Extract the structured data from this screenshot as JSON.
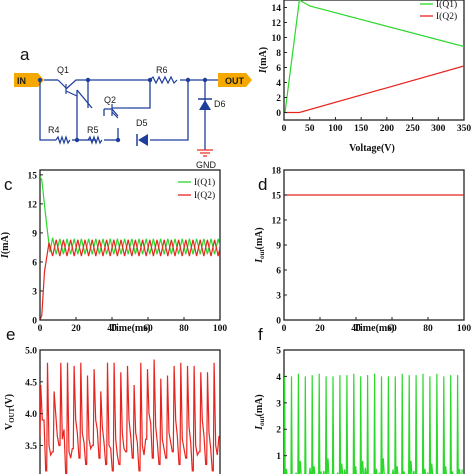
{
  "panel_letters": [
    "a",
    "c",
    "d",
    "e",
    "f"
  ],
  "circuit": {
    "in_label": "IN",
    "out_label": "OUT",
    "components": [
      "Q1",
      "Q2",
      "R6",
      "R4",
      "R5",
      "D5",
      "D6"
    ],
    "gnd_label": "GND",
    "colors": {
      "wire": "#1f3e9c",
      "port": "#f5a800",
      "node": "#1f3e9c"
    }
  },
  "chart_data": [
    {
      "id": "b",
      "type": "line",
      "xlabel": "Voltage(V)",
      "ylabel_main": "I",
      "ylabel_unit": "(mA)",
      "xlim": [
        0,
        350
      ],
      "ylim": [
        -1,
        15
      ],
      "xticks": [
        0,
        50,
        100,
        150,
        200,
        250,
        300,
        350
      ],
      "yticks": [
        0,
        2,
        4,
        6,
        8,
        10,
        12,
        14
      ],
      "legend": [
        "I(Q1)",
        "I(Q2)"
      ],
      "series": [
        {
          "name": "I(Q1)",
          "color": "#2bd82b",
          "x": [
            0,
            2,
            30,
            50,
            350
          ],
          "y": [
            0,
            0,
            15,
            14.2,
            8.8
          ]
        },
        {
          "name": "I(Q2)",
          "color": "#e8241f",
          "x": [
            0,
            30,
            350
          ],
          "y": [
            0,
            0,
            6.2
          ]
        }
      ]
    },
    {
      "id": "c",
      "type": "line",
      "xlabel": "Time(ms)",
      "ylabel_main": "I",
      "ylabel_unit": "(mA)",
      "xlim": [
        0,
        100
      ],
      "ylim": [
        0,
        15.5
      ],
      "xticks": [
        0,
        20,
        40,
        60,
        80,
        100
      ],
      "yticks": [
        0,
        3,
        6,
        9,
        12,
        15
      ],
      "legend": [
        "I(Q1)",
        "I(Q2)"
      ],
      "series": [
        {
          "name": "I(Q1)",
          "color": "#2bd82b",
          "x": [
            0,
            1,
            3,
            5.5,
            7,
            9,
            11,
            13,
            15,
            17,
            19,
            21,
            23,
            25,
            27,
            29,
            31,
            33,
            35,
            37,
            39,
            41,
            43,
            45,
            47,
            49,
            51,
            53,
            55,
            57,
            59,
            61,
            63,
            65,
            67,
            69,
            71,
            73,
            75,
            77,
            79,
            81,
            83,
            85,
            87,
            89,
            91,
            93,
            95,
            97,
            99,
            100
          ],
          "y": [
            14.8,
            14.5,
            11,
            7,
            8.5,
            6.8,
            8.4,
            6.8,
            8.4,
            6.8,
            8.4,
            6.8,
            8.4,
            6.8,
            8.4,
            6.8,
            8.4,
            6.8,
            8.4,
            6.8,
            8.4,
            6.8,
            8.4,
            6.8,
            8.4,
            6.8,
            8.4,
            6.8,
            8.4,
            6.8,
            8.4,
            6.8,
            8.4,
            6.8,
            8.4,
            6.8,
            8.4,
            6.8,
            8.4,
            6.8,
            8.4,
            6.8,
            8.4,
            6.8,
            8.4,
            6.8,
            8.4,
            6.8,
            8.4,
            6.8,
            8.4,
            7.6
          ]
        },
        {
          "name": "I(Q2)",
          "color": "#e8241f",
          "x": [
            0,
            1,
            2.5,
            5,
            7,
            9,
            11,
            13,
            15,
            17,
            19,
            21,
            23,
            25,
            27,
            29,
            31,
            33,
            35,
            37,
            39,
            41,
            43,
            45,
            47,
            49,
            51,
            53,
            55,
            57,
            59,
            61,
            63,
            65,
            67,
            69,
            71,
            73,
            75,
            77,
            79,
            81,
            83,
            85,
            87,
            89,
            91,
            93,
            95,
            97,
            99,
            100
          ],
          "y": [
            0,
            0.5,
            5,
            8,
            6.6,
            8.3,
            6.6,
            8.3,
            6.6,
            8.3,
            6.6,
            8.3,
            6.6,
            8.3,
            6.6,
            8.3,
            6.6,
            8.3,
            6.6,
            8.3,
            6.6,
            8.3,
            6.6,
            8.3,
            6.6,
            8.3,
            6.6,
            8.3,
            6.6,
            8.3,
            6.6,
            8.3,
            6.6,
            8.3,
            6.6,
            8.3,
            6.6,
            8.3,
            6.6,
            8.3,
            6.6,
            8.3,
            6.6,
            8.3,
            6.6,
            8.3,
            6.6,
            8.3,
            6.6,
            8.3,
            6.6,
            7.5
          ]
        }
      ]
    },
    {
      "id": "d",
      "type": "line",
      "xlabel": "Time(ms)",
      "ylabel_main": "I",
      "ylabel_sub": "out",
      "ylabel_unit": "(mA)",
      "xlim": [
        0,
        100
      ],
      "ylim": [
        0,
        18
      ],
      "xticks": [
        0,
        20,
        40,
        60,
        80,
        100
      ],
      "yticks": [
        0,
        3,
        6,
        9,
        12,
        15,
        18
      ],
      "series": [
        {
          "name": "",
          "color": "#e8241f",
          "x": [
            0,
            100
          ],
          "y": [
            15,
            15
          ]
        }
      ]
    },
    {
      "id": "e",
      "type": "line",
      "ylabel_main": "V",
      "ylabel_sub": "OUT",
      "ylabel_unit": "(V)",
      "xlim": [
        0,
        100
      ],
      "ylim": [
        2.8,
        5.0
      ],
      "yticks": [
        3.0,
        3.5,
        4.0,
        4.5,
        5.0
      ],
      "series": [
        {
          "name": "",
          "color": "#e8241f",
          "peaks": [
            4.45,
            4.8,
            4.35,
            4.8,
            4.8,
            4.75,
            4.8,
            4.6,
            4.7,
            4.35,
            4.8,
            4.8,
            4.65,
            4.75,
            4.45,
            4.8,
            4.7,
            4.85,
            4.55,
            4.6,
            4.75,
            4.8,
            4.75,
            4.75,
            4.65,
            4.65,
            4.8
          ],
          "troughs": [
            3.65,
            3.1,
            3.4,
            3.5,
            3.05,
            3.45,
            3.3,
            3.2,
            3.5,
            3.3,
            3.2,
            3.1,
            3.2,
            3.4,
            3.3,
            3.1,
            3.6,
            3.3,
            3.2,
            3.3,
            3.4,
            3.2,
            3.3,
            3.1,
            3.4,
            3.2,
            3.1
          ],
          "shoulders": [
            3.9,
            3.5,
            4.0,
            3.6,
            3.4,
            3.9,
            3.7,
            3.6,
            3.9,
            3.8,
            3.5,
            3.6,
            3.7,
            3.9,
            3.7,
            3.5,
            4.0,
            3.8,
            3.6,
            3.7,
            3.9,
            3.6,
            3.8,
            3.5,
            3.9,
            3.7,
            3.5
          ]
        }
      ]
    },
    {
      "id": "f",
      "type": "line",
      "ylabel_main": "I",
      "ylabel_sub": "out",
      "ylabel_unit": "(mA)",
      "xlim": [
        0,
        100
      ],
      "ylim": [
        -0.3,
        5
      ],
      "yticks": [
        0,
        1,
        2,
        3,
        4,
        5
      ],
      "series": [
        {
          "name": "",
          "color": "#2bd82b",
          "peaks": [
            4.05,
            4.0,
            4.1,
            4.0,
            4.05,
            4.1,
            4.0,
            4.0,
            4.05,
            4.05,
            4.1,
            4.0,
            4.05,
            4.1,
            4.0,
            4.0,
            4.0,
            4.1,
            4.05,
            4.05,
            4.1,
            4.0,
            4.1,
            4.0,
            4.05,
            4.05
          ],
          "lows": [
            0.5,
            0.3,
            0.8,
            0.2,
            0.6,
            0.4,
            0.9,
            0.3,
            0.7,
            0.2,
            0.6,
            0.8,
            0.3,
            0.5,
            0.9,
            0.2,
            0.6,
            0.4,
            0.8,
            0.3,
            0.5,
            0.7,
            0.2,
            0.6,
            0.4,
            0.5
          ]
        }
      ]
    }
  ]
}
